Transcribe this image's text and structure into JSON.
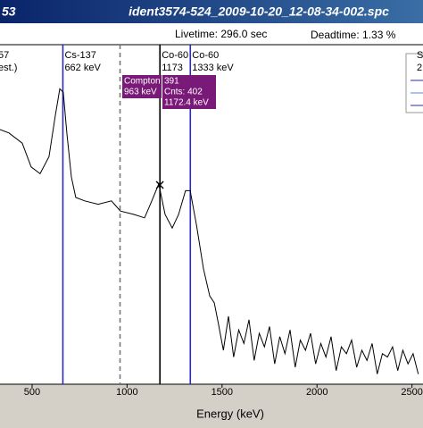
{
  "chart_data": {
    "type": "line",
    "window_fragment": "53",
    "title": "ident3574-524_2009-10-20_12-08-34-002.spc",
    "livetime": "Livetime: 296.0 sec",
    "deadtime": "Deadtime: 1.33 %",
    "xlabel": "Energy (keV)",
    "xlim": [
      331,
      2558
    ],
    "xticks": [
      500,
      1000,
      1500,
      2000,
      2500
    ],
    "ylim": [
      0,
      100
    ],
    "color": "#000000",
    "x": [
      331,
      378,
      448,
      495,
      542,
      589,
      622,
      646,
      664,
      683,
      707,
      730,
      777,
      848,
      918,
      965,
      1036,
      1092,
      1130,
      1167,
      1200,
      1238,
      1271,
      1308,
      1332,
      1365,
      1402,
      1435,
      1459,
      1480,
      1507,
      1534,
      1561,
      1588,
      1615,
      1642,
      1669,
      1696,
      1723,
      1750,
      1777,
      1804,
      1831,
      1858,
      1885,
      1912,
      1939,
      1966,
      1993,
      2020,
      2047,
      2074,
      2101,
      2128,
      2155,
      2182,
      2209,
      2236,
      2263,
      2290,
      2317,
      2344,
      2371,
      2398,
      2425,
      2452,
      2479,
      2506,
      2533
    ],
    "values": [
      75,
      74,
      71,
      64,
      62,
      67,
      79,
      87,
      86,
      74,
      61,
      55,
      54,
      53,
      54,
      51,
      50,
      49,
      54,
      59,
      50,
      46,
      50,
      57,
      57,
      47,
      34,
      26,
      24,
      18,
      10,
      20,
      8,
      16,
      12,
      19,
      7,
      15,
      11,
      17,
      6,
      14,
      9,
      16,
      5,
      13,
      10,
      15,
      6,
      12,
      8,
      14,
      4,
      11,
      9,
      13,
      5,
      10,
      7,
      12,
      3,
      9,
      8,
      11,
      4,
      10,
      6,
      9,
      3
    ],
    "markers": [
      {
        "energy": 662,
        "color": "#2a2ab8",
        "dashed": false,
        "lines": [
          "Cs-137",
          "662 keV"
        ]
      },
      {
        "energy": 963,
        "color": "#777777",
        "dashed": true,
        "lines": []
      },
      {
        "energy": 1173,
        "color": "#000000",
        "dashed": false,
        "lines": [
          "Co-60",
          "1173"
        ]
      },
      {
        "energy": 1333,
        "color": "#2a2ab8",
        "dashed": false,
        "lines": [
          "Co-60",
          "1333 keV"
        ]
      }
    ],
    "cut_left": [
      "57",
      "est.)"
    ],
    "cut_right": [
      "S",
      "2"
    ],
    "cursor_energy": 1172.4,
    "cursor_boxes": [
      {
        "lines": [
          "Compton Edge:",
          "963 keV"
        ]
      },
      {
        "lines": [
          "391",
          "Cnts: 402",
          "1172.4 keV"
        ]
      }
    ]
  }
}
